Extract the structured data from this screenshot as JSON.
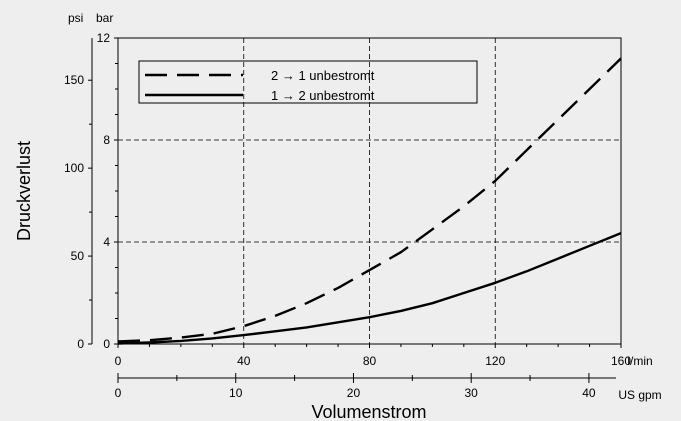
{
  "chart_data": {
    "type": "line",
    "ylabel": "Druckverlust",
    "xlabel": "Volumenstrom",
    "y_unit_bar": "bar",
    "y_unit_psi": "psi",
    "x_unit_lmin": "l/min",
    "x_unit_usgpm": "US gpm",
    "xlim": [
      0,
      160
    ],
    "ylim": [
      0,
      12
    ],
    "psi_lim": [
      0,
      174
    ],
    "usgpm_lim": [
      0,
      42.3
    ],
    "grid": "dashed",
    "legend_position": "top-left",
    "bar_ticks": [
      "0",
      "4",
      "8",
      "12"
    ],
    "bar_tick_values": [
      0,
      4,
      8,
      12
    ],
    "psi_ticks": [
      "0",
      "50",
      "100",
      "150"
    ],
    "psi_tick_values": [
      0,
      50,
      100,
      150
    ],
    "lmin_ticks": [
      "0",
      "40",
      "80",
      "120",
      "160"
    ],
    "lmin_tick_values": [
      0,
      40,
      80,
      120,
      160
    ],
    "usgpm_ticks": [
      "0",
      "10",
      "20",
      "30",
      "40"
    ],
    "usgpm_tick_values": [
      0,
      10,
      20,
      30,
      40
    ],
    "series": [
      {
        "name": "2 → 1 unbestromt",
        "dash": "dashed",
        "x": [
          0,
          10,
          20,
          30,
          40,
          50,
          60,
          70,
          80,
          90,
          100,
          110,
          120,
          130,
          140,
          150,
          160
        ],
        "y": [
          0.1,
          0.15,
          0.25,
          0.4,
          0.7,
          1.1,
          1.6,
          2.2,
          2.9,
          3.6,
          4.5,
          5.4,
          6.4,
          7.6,
          8.8,
          10.0,
          11.2
        ]
      },
      {
        "name": "1 → 2 unbestromt",
        "dash": "solid",
        "x": [
          0,
          10,
          20,
          30,
          40,
          50,
          60,
          70,
          80,
          90,
          100,
          110,
          120,
          130,
          140,
          150,
          160
        ],
        "y": [
          0.02,
          0.06,
          0.12,
          0.22,
          0.35,
          0.5,
          0.65,
          0.85,
          1.05,
          1.3,
          1.6,
          2.0,
          2.4,
          2.85,
          3.35,
          3.85,
          4.35
        ]
      }
    ]
  }
}
